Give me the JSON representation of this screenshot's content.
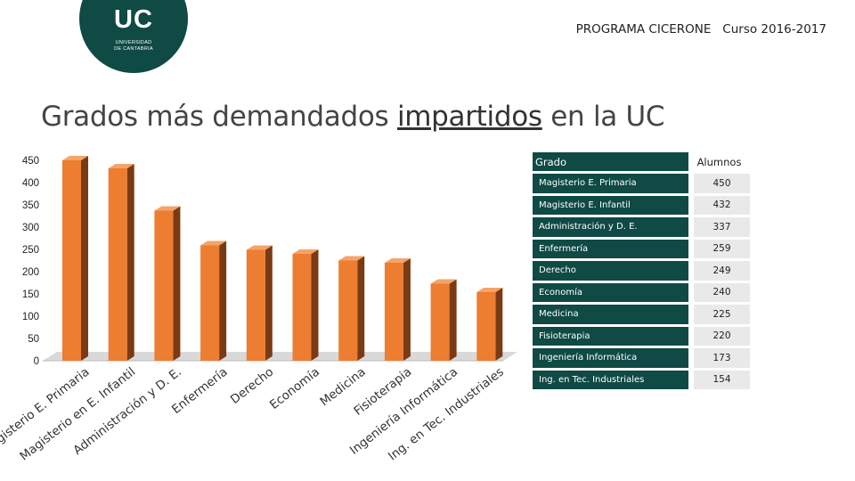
{
  "header": {
    "logo_text": "UC",
    "logo_sub_line1": "UNIVERSIDAD",
    "logo_sub_line2": "DE CANTABRIA",
    "program": "PROGRAMA CICERONE   Curso 2016-2017"
  },
  "title": {
    "before": "Grados más demandados ",
    "underlined": "impartidos",
    "after": " en la UC"
  },
  "colors": {
    "bar_front": "#ed7d31",
    "bar_top": "#f4a468",
    "bar_side": "#7a3a14",
    "table_header": "#0f4a45"
  },
  "chart_data": {
    "type": "bar",
    "title": "Grados más demandados impartidos en la UC",
    "categories": [
      "Magisterio E. Primaria",
      "Magisterio en E. Infantil",
      "Administración y D. E.",
      "Enfermería",
      "Derecho",
      "Economía",
      "Medicina",
      "Fisioterapia",
      "Ingeniería Informática",
      "Ing. en Tec. Industriales"
    ],
    "values": [
      450,
      432,
      337,
      259,
      249,
      240,
      225,
      220,
      173,
      154
    ],
    "yticks": [
      "0",
      "50",
      "100",
      "150",
      "200",
      "250",
      "300",
      "350",
      "400",
      "450"
    ],
    "ylim": [
      0,
      450
    ],
    "xlabel": "",
    "ylabel": ""
  },
  "table": {
    "header_grado": "Grado",
    "header_alumnos": "Alumnos",
    "rows": [
      {
        "grado": "Magisterio E. Primaria",
        "alumnos": "450"
      },
      {
        "grado": "Magisterio E. Infantil",
        "alumnos": "432"
      },
      {
        "grado": "Administración y D. E.",
        "alumnos": "337"
      },
      {
        "grado": "Enfermería",
        "alumnos": "259"
      },
      {
        "grado": "Derecho",
        "alumnos": "249"
      },
      {
        "grado": "Economía",
        "alumnos": "240"
      },
      {
        "grado": "Medicina",
        "alumnos": "225"
      },
      {
        "grado": "Fisioterapia",
        "alumnos": "220"
      },
      {
        "grado": "Ingeniería Informática",
        "alumnos": "173"
      },
      {
        "grado": "Ing. en Tec. Industriales",
        "alumnos": "154"
      }
    ]
  }
}
